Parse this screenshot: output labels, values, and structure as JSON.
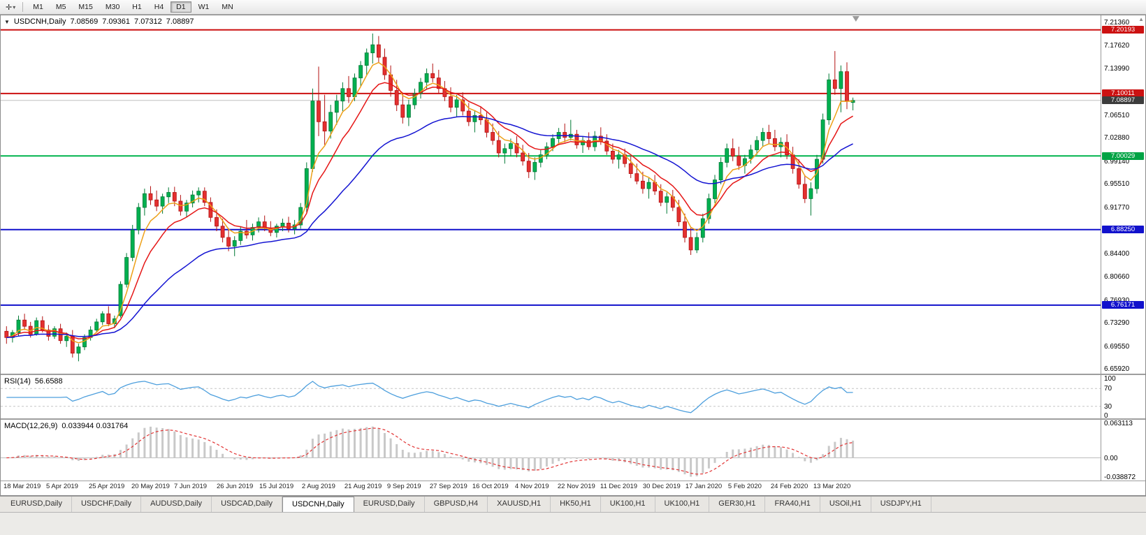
{
  "toolbar": {
    "tool_icon": "✛",
    "tool_caret": "▾",
    "timeframes": [
      "M1",
      "M5",
      "M15",
      "M30",
      "H1",
      "H4",
      "D1",
      "W1",
      "MN"
    ],
    "selected": "D1"
  },
  "chart_header": {
    "dropdown_icon": "▼",
    "symbol": "USDCNH,Daily",
    "open": "7.08569",
    "high": "7.09361",
    "low": "7.07312",
    "close": "7.08897"
  },
  "price_axis": {
    "scroll_icon": "▲",
    "labels": [
      "7.21360",
      "7.17620",
      "7.13990",
      "7.06510",
      "7.02880",
      "6.99140",
      "6.95510",
      "6.91770",
      "6.84400",
      "6.80660",
      "6.76930",
      "6.73290",
      "6.69550",
      "6.65920"
    ],
    "badges": [
      {
        "text": "7.20193",
        "bg": "#cc1111"
      },
      {
        "text": "7.10011",
        "bg": "#cc1111"
      },
      {
        "text": "7.08897",
        "bg": "#3c3c3c"
      },
      {
        "text": "7.00029",
        "bg": "#00a344"
      },
      {
        "text": "6.88250",
        "bg": "#1111cc"
      },
      {
        "text": "6.76171",
        "bg": "#1111cc"
      }
    ]
  },
  "indicators": {
    "rsi": {
      "name": "RSI(14)",
      "value": "56.6588",
      "axis_labels": [
        "100",
        "70",
        "30",
        "0"
      ],
      "levels": [
        70,
        30
      ],
      "line_color": "#4d9fdd"
    },
    "macd": {
      "name": "MACD(12,26,9)",
      "values": "0.033944 0.031764",
      "axis_labels": [
        "0.063113",
        "0.00",
        "-0.038872"
      ],
      "range": [
        -0.038872,
        0.063113
      ]
    }
  },
  "time_axis": {
    "labels": [
      "18 Mar 2019",
      "5 Apr 2019",
      "25 Apr 2019",
      "20 May 2019",
      "7 Jun 2019",
      "26 Jun 2019",
      "15 Jul 2019",
      "2 Aug 2019",
      "21 Aug 2019",
      "9 Sep 2019",
      "27 Sep 2019",
      "16 Oct 2019",
      "4 Nov 2019",
      "22 Nov 2019",
      "11 Dec 2019",
      "30 Dec 2019",
      "17 Jan 2020",
      "5 Feb 2020",
      "24 Feb 2020",
      "13 Mar 2020"
    ]
  },
  "tabs": {
    "items": [
      "EURUSD,Daily",
      "USDCHF,Daily",
      "AUDUSD,Daily",
      "USDCAD,Daily",
      "USDCNH,Daily",
      "EURUSD,Daily",
      "GBPUSD,H4",
      "XAUUSD,H1",
      "HK50,H1",
      "UK100,H1",
      "UK100,H1",
      "GER30,H1",
      "FRA40,H1",
      "USOil,H1",
      "USDJPY,H1"
    ],
    "active_index": 4
  },
  "chart_data": {
    "type": "candlestick",
    "symbol": "USDCNH",
    "timeframe": "Daily",
    "price_range": [
      6.65,
      7.225
    ],
    "plot_fraction": 0.775,
    "up_color": "#00b050",
    "up_border": "#007a36",
    "down_color": "#e33030",
    "down_border": "#b31212",
    "moving_averages": [
      {
        "period": 5,
        "color": "#eda018"
      },
      {
        "period": 10,
        "color": "#e51616"
      },
      {
        "period": 30,
        "color": "#1414d2"
      }
    ],
    "rsi_draw_period": 10,
    "macd_draw_periods": [
      7,
      14,
      5
    ],
    "hlines": [
      {
        "value": 7.20193,
        "color": "#cc1111",
        "width": 2
      },
      {
        "value": 7.10011,
        "color": "#cc1111",
        "width": 2
      },
      {
        "value": 7.08897,
        "color": "#c0c0c0",
        "width": 1
      },
      {
        "value": 7.00029,
        "color": "#00b34d",
        "width": 2
      },
      {
        "value": 6.8825,
        "color": "#1111cc",
        "width": 2
      },
      {
        "value": 6.76171,
        "color": "#1111cc",
        "width": 2
      }
    ],
    "candles": [
      [
        6.72,
        6.728,
        6.7,
        6.71
      ],
      [
        6.71,
        6.722,
        6.702,
        6.718
      ],
      [
        6.718,
        6.745,
        6.712,
        6.738
      ],
      [
        6.738,
        6.748,
        6.722,
        6.728
      ],
      [
        6.728,
        6.735,
        6.71,
        6.715
      ],
      [
        6.715,
        6.742,
        6.713,
        6.737
      ],
      [
        6.737,
        6.744,
        6.718,
        6.722
      ],
      [
        6.722,
        6.73,
        6.705,
        6.712
      ],
      [
        6.712,
        6.728,
        6.708,
        6.724
      ],
      [
        6.724,
        6.732,
        6.7,
        6.705
      ],
      [
        6.705,
        6.718,
        6.695,
        6.712
      ],
      [
        6.712,
        6.722,
        6.678,
        6.685
      ],
      [
        6.685,
        6.7,
        6.672,
        6.695
      ],
      [
        6.695,
        6.715,
        6.69,
        6.71
      ],
      [
        6.71,
        6.728,
        6.705,
        6.722
      ],
      [
        6.722,
        6.74,
        6.718,
        6.735
      ],
      [
        6.735,
        6.752,
        6.73,
        6.748
      ],
      [
        6.748,
        6.76,
        6.728,
        6.732
      ],
      [
        6.732,
        6.745,
        6.725,
        6.74
      ],
      [
        6.745,
        6.8,
        6.742,
        6.795
      ],
      [
        6.795,
        6.845,
        6.79,
        6.838
      ],
      [
        6.838,
        6.89,
        6.832,
        6.882
      ],
      [
        6.882,
        6.925,
        6.875,
        6.918
      ],
      [
        6.918,
        6.948,
        6.905,
        6.94
      ],
      [
        6.94,
        6.952,
        6.922,
        6.93
      ],
      [
        6.93,
        6.945,
        6.912,
        6.92
      ],
      [
        6.92,
        6.94,
        6.908,
        6.935
      ],
      [
        6.935,
        6.95,
        6.925,
        6.942
      ],
      [
        6.942,
        6.951,
        6.92,
        6.928
      ],
      [
        6.928,
        6.938,
        6.905,
        6.912
      ],
      [
        6.912,
        6.93,
        6.902,
        6.925
      ],
      [
        6.925,
        6.945,
        6.918,
        6.938
      ],
      [
        6.938,
        6.95,
        6.926,
        6.944
      ],
      [
        6.944,
        6.95,
        6.92,
        6.926
      ],
      [
        6.926,
        6.934,
        6.895,
        6.902
      ],
      [
        6.902,
        6.915,
        6.88,
        6.888
      ],
      [
        6.888,
        6.9,
        6.862,
        6.87
      ],
      [
        6.87,
        6.885,
        6.848,
        6.856
      ],
      [
        6.856,
        6.872,
        6.84,
        6.865
      ],
      [
        6.865,
        6.888,
        6.858,
        6.88
      ],
      [
        6.88,
        6.898,
        6.868,
        6.874
      ],
      [
        6.874,
        6.892,
        6.865,
        6.886
      ],
      [
        6.886,
        6.902,
        6.878,
        6.895
      ],
      [
        6.895,
        6.905,
        6.88,
        6.885
      ],
      [
        6.885,
        6.896,
        6.872,
        6.878
      ],
      [
        6.878,
        6.892,
        6.87,
        6.888
      ],
      [
        6.888,
        6.9,
        6.88,
        6.893
      ],
      [
        6.893,
        6.903,
        6.878,
        6.884
      ],
      [
        6.884,
        6.898,
        6.875,
        6.89
      ],
      [
        6.89,
        6.925,
        6.884,
        6.918
      ],
      [
        6.918,
        6.99,
        6.91,
        6.98
      ],
      [
        6.98,
        7.108,
        6.975,
        7.088
      ],
      [
        7.088,
        7.143,
        7.032,
        7.055
      ],
      [
        7.055,
        7.098,
        7.018,
        7.04
      ],
      [
        7.04,
        7.082,
        7.028,
        7.07
      ],
      [
        7.07,
        7.098,
        7.05,
        7.088
      ],
      [
        7.088,
        7.118,
        7.072,
        7.108
      ],
      [
        7.108,
        7.128,
        7.085,
        7.095
      ],
      [
        7.095,
        7.132,
        7.088,
        7.125
      ],
      [
        7.125,
        7.152,
        7.112,
        7.145
      ],
      [
        7.145,
        7.172,
        7.13,
        7.165
      ],
      [
        7.165,
        7.196,
        7.148,
        7.178
      ],
      [
        7.178,
        7.192,
        7.15,
        7.158
      ],
      [
        7.158,
        7.172,
        7.122,
        7.13
      ],
      [
        7.13,
        7.145,
        7.095,
        7.105
      ],
      [
        7.105,
        7.122,
        7.072,
        7.082
      ],
      [
        7.082,
        7.1,
        7.052,
        7.062
      ],
      [
        7.062,
        7.09,
        7.048,
        7.082
      ],
      [
        7.082,
        7.108,
        7.075,
        7.1
      ],
      [
        7.1,
        7.125,
        7.092,
        7.118
      ],
      [
        7.118,
        7.14,
        7.108,
        7.132
      ],
      [
        7.132,
        7.148,
        7.118,
        7.125
      ],
      [
        7.125,
        7.138,
        7.1,
        7.108
      ],
      [
        7.108,
        7.12,
        7.088,
        7.095
      ],
      [
        7.095,
        7.11,
        7.07,
        7.078
      ],
      [
        7.078,
        7.098,
        7.062,
        7.09
      ],
      [
        7.09,
        7.102,
        7.065,
        7.072
      ],
      [
        7.072,
        7.085,
        7.048,
        7.055
      ],
      [
        7.055,
        7.072,
        7.038,
        7.065
      ],
      [
        7.065,
        7.08,
        7.05,
        7.058
      ],
      [
        7.058,
        7.07,
        7.03,
        7.038
      ],
      [
        7.038,
        7.052,
        7.018,
        7.025
      ],
      [
        7.025,
        7.04,
        6.998,
        7.005
      ],
      [
        7.005,
        7.02,
        6.988,
        7.012
      ],
      [
        7.012,
        7.028,
        7.0,
        7.02
      ],
      [
        7.02,
        7.032,
        6.998,
        7.005
      ],
      [
        7.005,
        7.018,
        6.985,
        6.992
      ],
      [
        6.992,
        7.005,
        6.965,
        6.975
      ],
      [
        6.975,
        6.998,
        6.962,
        6.99
      ],
      [
        6.99,
        7.01,
        6.982,
        7.002
      ],
      [
        7.002,
        7.022,
        6.995,
        7.015
      ],
      [
        7.015,
        7.035,
        7.008,
        7.028
      ],
      [
        7.028,
        7.045,
        7.02,
        7.038
      ],
      [
        7.038,
        7.052,
        7.022,
        7.03
      ],
      [
        7.03,
        7.058,
        7.025,
        7.035
      ],
      [
        7.035,
        7.042,
        7.012,
        7.018
      ],
      [
        7.018,
        7.032,
        7.005,
        7.025
      ],
      [
        7.025,
        7.038,
        7.01,
        7.015
      ],
      [
        7.015,
        7.04,
        7.008,
        7.032
      ],
      [
        7.032,
        7.046,
        7.018,
        7.024
      ],
      [
        7.024,
        7.035,
        7.002,
        7.008
      ],
      [
        7.008,
        7.02,
        6.988,
        6.995
      ],
      [
        6.995,
        7.01,
        6.98,
        7.002
      ],
      [
        7.002,
        7.012,
        6.982,
        6.988
      ],
      [
        6.988,
        7.0,
        6.965,
        6.972
      ],
      [
        6.972,
        6.988,
        6.955,
        6.96
      ],
      [
        6.96,
        6.975,
        6.94,
        6.948
      ],
      [
        6.948,
        6.965,
        6.932,
        6.958
      ],
      [
        6.958,
        6.97,
        6.938,
        6.944
      ],
      [
        6.944,
        6.955,
        6.92,
        6.926
      ],
      [
        6.926,
        6.942,
        6.908,
        6.935
      ],
      [
        6.935,
        6.946,
        6.912,
        6.918
      ],
      [
        6.918,
        6.93,
        6.888,
        6.895
      ],
      [
        6.895,
        6.908,
        6.862,
        6.87
      ],
      [
        6.87,
        6.885,
        6.842,
        6.85
      ],
      [
        6.85,
        6.878,
        6.845,
        6.87
      ],
      [
        6.87,
        6.908,
        6.862,
        6.9
      ],
      [
        6.9,
        6.94,
        6.892,
        6.932
      ],
      [
        6.932,
        6.97,
        6.925,
        6.962
      ],
      [
        6.962,
        6.998,
        6.955,
        6.99
      ],
      [
        6.99,
        7.02,
        6.982,
        7.012
      ],
      [
        7.012,
        7.028,
        6.992,
        7.0
      ],
      [
        7.0,
        7.015,
        6.978,
        6.985
      ],
      [
        6.985,
        7.002,
        6.972,
        6.996
      ],
      [
        6.996,
        7.018,
        6.988,
        7.01
      ],
      [
        7.01,
        7.032,
        7.002,
        7.025
      ],
      [
        7.025,
        7.045,
        7.015,
        7.038
      ],
      [
        7.038,
        7.05,
        7.02,
        7.028
      ],
      [
        7.028,
        7.042,
        7.008,
        7.015
      ],
      [
        7.015,
        7.03,
        6.998,
        7.022
      ],
      [
        7.022,
        7.035,
        6.995,
        7.002
      ],
      [
        7.002,
        7.015,
        6.972,
        6.98
      ],
      [
        6.98,
        6.995,
        6.948,
        6.955
      ],
      [
        6.955,
        6.97,
        6.925,
        6.932
      ],
      [
        6.932,
        6.958,
        6.905,
        6.948
      ],
      [
        6.948,
        7.002,
        6.94,
        6.995
      ],
      [
        6.995,
        7.068,
        6.988,
        7.058
      ],
      [
        7.058,
        7.132,
        7.05,
        7.122
      ],
      [
        7.122,
        7.168,
        7.098,
        7.108
      ],
      [
        7.108,
        7.145,
        7.07,
        7.135
      ],
      [
        7.135,
        7.15,
        7.075,
        7.088
      ],
      [
        7.08569,
        7.09361,
        7.07312,
        7.08897
      ]
    ]
  }
}
